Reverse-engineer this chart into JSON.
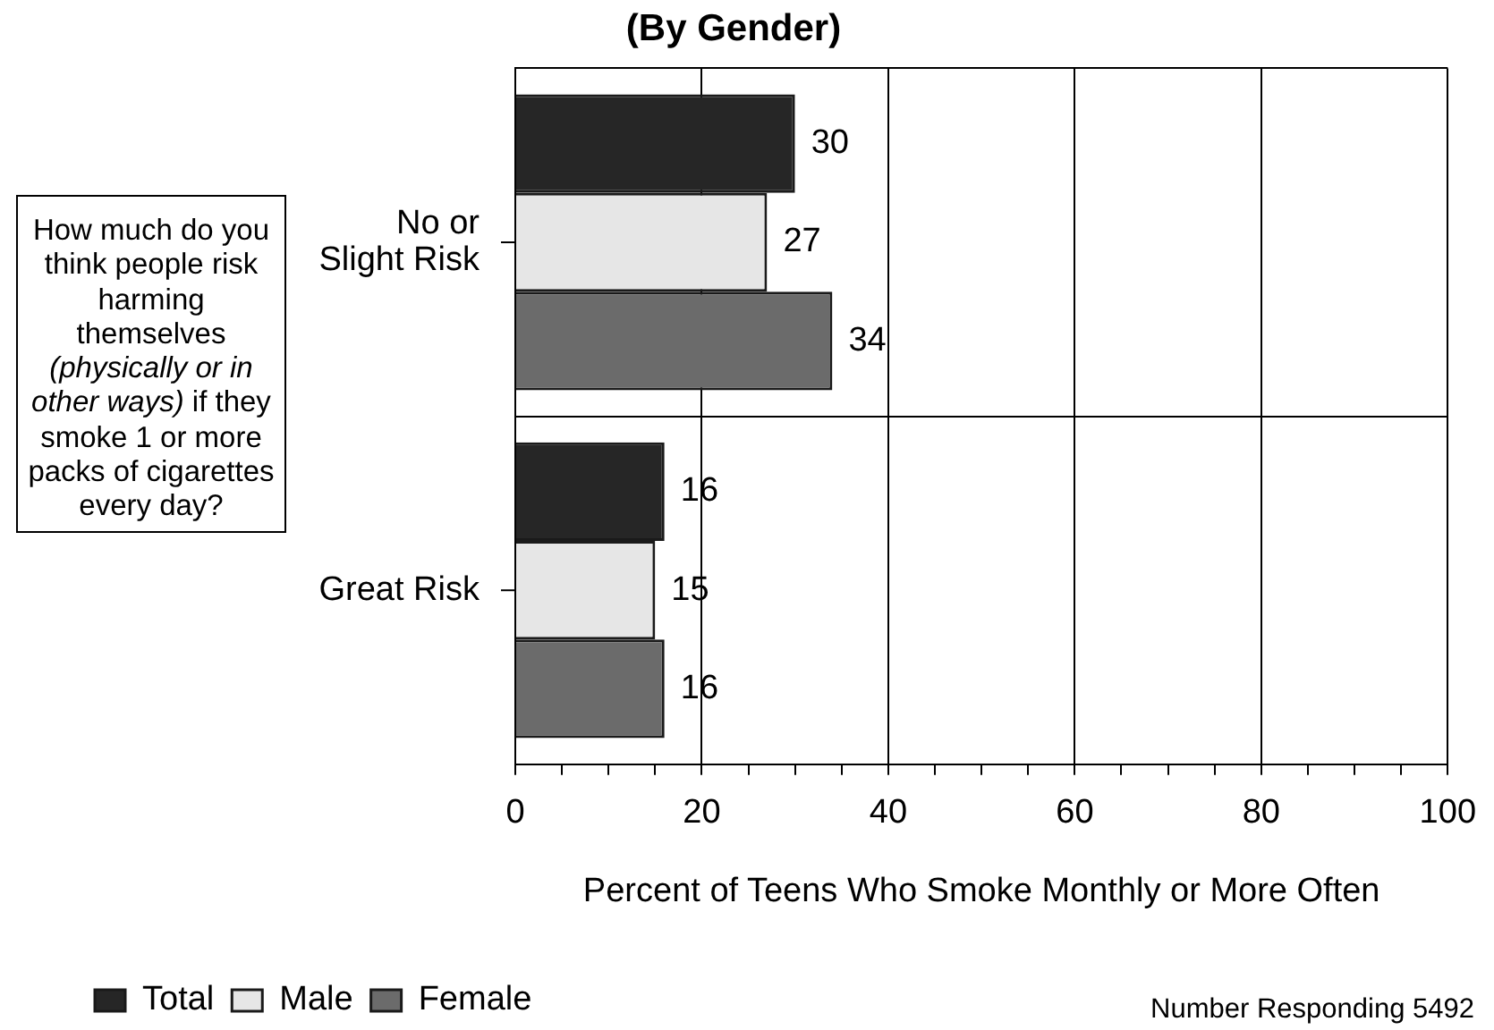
{
  "chart_data": {
    "type": "bar",
    "orientation": "horizontal",
    "title": "(By Gender)",
    "xlabel": "Percent of Teens Who Smoke Monthly or More Often",
    "categories": [
      "No or Slight Risk",
      "Great Risk"
    ],
    "series": [
      {
        "name": "Total",
        "color": "#262626",
        "values": [
          30,
          16
        ]
      },
      {
        "name": "Male",
        "color": "#e6e6e6",
        "values": [
          27,
          15
        ]
      },
      {
        "name": "Female",
        "color": "#6b6b6b",
        "values": [
          34,
          16
        ]
      }
    ],
    "xlim": [
      0,
      100
    ],
    "xticks": [
      0,
      {
        "value": 5,
        "label": null
      },
      {
        "value": 10,
        "label": null
      },
      {
        "value": 15,
        "label": null
      },
      20,
      {
        "value": 25,
        "label": null
      },
      {
        "value": 30,
        "label": null
      },
      {
        "value": 35,
        "label": null
      },
      40,
      {
        "value": 45,
        "label": null
      },
      {
        "value": 50,
        "label": null
      },
      {
        "value": 55,
        "label": null
      },
      60,
      {
        "value": 65,
        "label": null
      },
      {
        "value": 70,
        "label": null
      },
      {
        "value": 75,
        "label": null
      },
      80,
      {
        "value": 85,
        "label": null
      },
      {
        "value": 90,
        "label": null
      },
      {
        "value": 95,
        "label": null
      },
      100
    ],
    "grid": true,
    "data_labels": true,
    "legend": "bottom left",
    "annotations": [
      "How much do you think people risk harming themselves (physically or in other ways) if they smoke 1 or more packs of cigarettes every day?",
      "Number Responding 5492"
    ]
  }
}
